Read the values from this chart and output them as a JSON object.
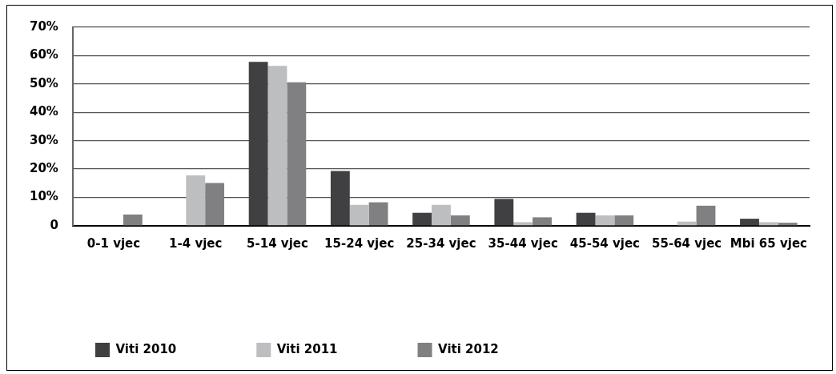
{
  "chart_data": {
    "type": "bar",
    "categories": [
      "0-1 vjec",
      "1-4 vjec",
      "5-14 vjec",
      "15-24 vjec",
      "25-34 vjec",
      "35-44 vjec",
      "45-54 vjec",
      "55-64 vjec",
      "Mbi 65 vjec"
    ],
    "series": [
      {
        "name": "Viti 2010",
        "color": "#404042",
        "values": [
          null,
          null,
          57.8,
          19.3,
          4.6,
          9.5,
          4.6,
          null,
          2.5
        ]
      },
      {
        "name": "Viti 2011",
        "color": "#bdbec0",
        "values": [
          null,
          17.8,
          56.4,
          7.4,
          7.4,
          1.3,
          3.7,
          1.5,
          1.3
        ]
      },
      {
        "name": "Viti 2012",
        "color": "#808083",
        "values": [
          4,
          15.1,
          50.6,
          8.3,
          3.7,
          3.0,
          3.7,
          7.1,
          1.1
        ]
      }
    ],
    "ylim": [
      0,
      70
    ],
    "yticks": [
      {
        "value": 0,
        "label": "0"
      },
      {
        "value": 10,
        "label": "10%"
      },
      {
        "value": 20,
        "label": "20%"
      },
      {
        "value": 30,
        "label": "30%"
      },
      {
        "value": 40,
        "label": "40%"
      },
      {
        "value": 50,
        "label": "50%"
      },
      {
        "value": 60,
        "label": "60%"
      },
      {
        "value": 70,
        "label": "70%"
      }
    ],
    "grid": "y",
    "legend": "bottom"
  }
}
